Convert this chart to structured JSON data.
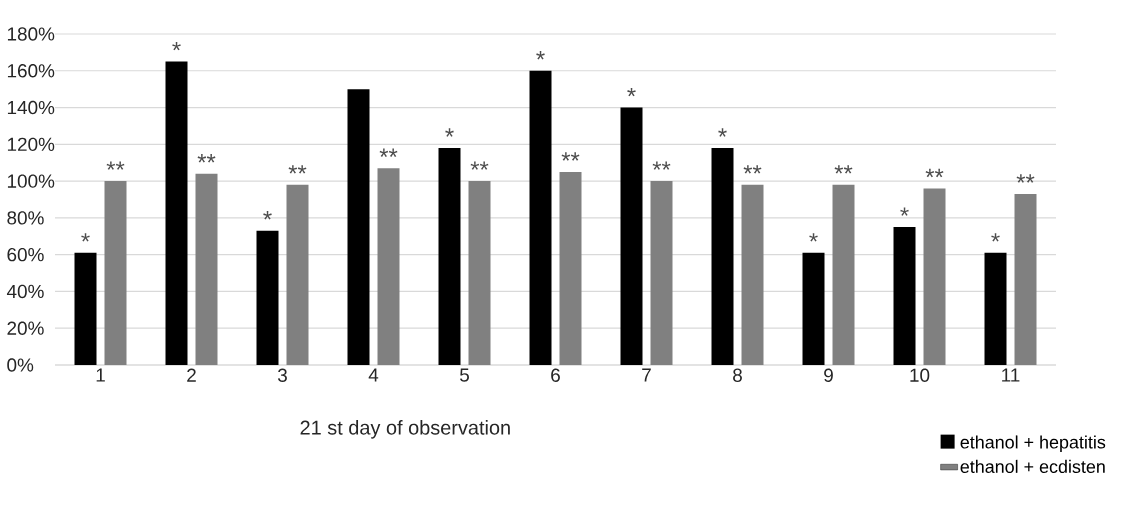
{
  "chart_data": {
    "type": "bar",
    "xlabel": "21 st day of observation",
    "categories": [
      "1",
      "2",
      "3",
      "4",
      "5",
      "6",
      "7",
      "8",
      "9",
      "10",
      "11"
    ],
    "series": [
      {
        "name": "ethanol + hepatitis",
        "color": "#000000",
        "values": [
          61,
          165,
          73,
          150,
          118,
          160,
          140,
          118,
          61,
          75,
          61
        ]
      },
      {
        "name": "ethanol + ecdisten",
        "color": "#808080",
        "values": [
          100,
          104,
          98,
          107,
          100,
          105,
          100,
          98,
          98,
          96,
          93
        ]
      }
    ],
    "ylim": [
      0,
      180
    ],
    "yticks": [
      {
        "value": 0,
        "label": "0%"
      },
      {
        "value": 20,
        "label": "20%"
      },
      {
        "value": 40,
        "label": "40%"
      },
      {
        "value": 60,
        "label": "60%"
      },
      {
        "value": 80,
        "label": "80%"
      },
      {
        "value": 100,
        "label": "100%"
      },
      {
        "value": 120,
        "label": "120%"
      },
      {
        "value": 140,
        "label": "140%"
      },
      {
        "value": 160,
        "label": "160%"
      },
      {
        "value": 180,
        "label": "180%"
      }
    ],
    "grid": "y",
    "legend": "bottom right",
    "annotations": [
      {
        "text": "*",
        "x": "1",
        "y": 61
      },
      {
        "text": "**",
        "x": "1",
        "y": 100
      },
      {
        "text": "*",
        "x": "2",
        "y": 165
      },
      {
        "text": "**",
        "x": "2",
        "y": 104
      },
      {
        "text": "*",
        "x": "3",
        "y": 73
      },
      {
        "text": "**",
        "x": "3",
        "y": 98
      },
      {
        "text": "**",
        "x": "4",
        "y": 107
      },
      {
        "text": "*",
        "x": "5",
        "y": 118
      },
      {
        "text": "**",
        "x": "5",
        "y": 100
      },
      {
        "text": "*",
        "x": "6",
        "y": 160
      },
      {
        "text": "**",
        "x": "6",
        "y": 105
      },
      {
        "text": "*",
        "x": "7",
        "y": 140
      },
      {
        "text": "**",
        "x": "7",
        "y": 100
      },
      {
        "text": "*",
        "x": "8",
        "y": 118
      },
      {
        "text": "**",
        "x": "8",
        "y": 98
      },
      {
        "text": "*",
        "x": "9",
        "y": 61
      },
      {
        "text": "**",
        "x": "9",
        "y": 98
      },
      {
        "text": "*",
        "x": "10",
        "y": 75
      },
      {
        "text": "**",
        "x": "10",
        "y": 96
      },
      {
        "text": "*",
        "x": "11",
        "y": 61
      },
      {
        "text": "**",
        "x": "11",
        "y": 93
      }
    ]
  }
}
